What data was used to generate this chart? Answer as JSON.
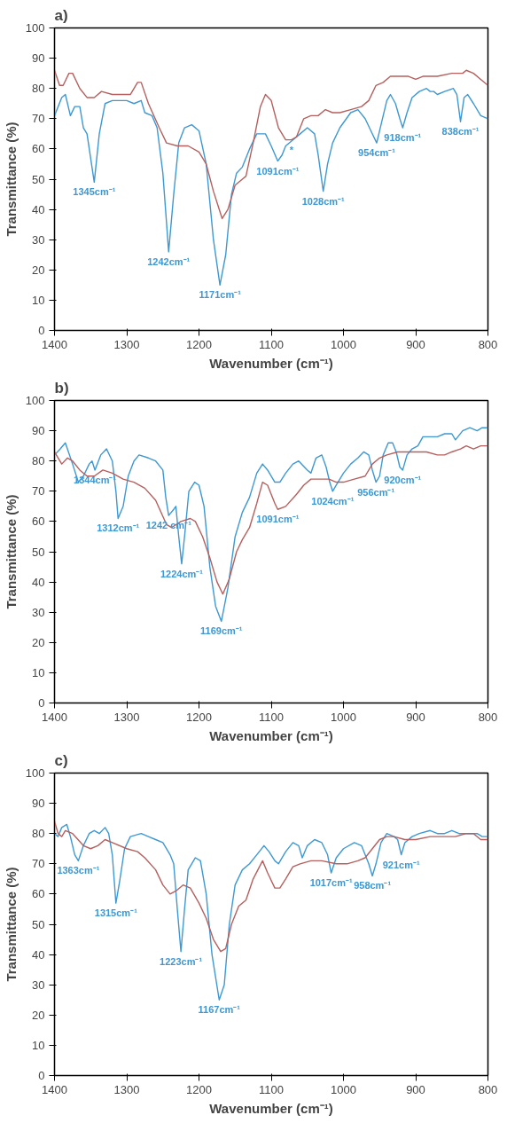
{
  "chart_data": [
    {
      "type": "line",
      "title": "a)",
      "xlabel": "Wavenumber (cm⁻¹)",
      "ylabel": "Transmittance (%)",
      "xlim": [
        1400,
        800
      ],
      "ylim": [
        0,
        100
      ],
      "xticks": [
        1400,
        1300,
        1200,
        1100,
        1000,
        900,
        800
      ],
      "yticks": [
        0,
        10,
        20,
        30,
        40,
        50,
        60,
        70,
        80,
        90,
        100
      ],
      "series": [
        {
          "color": "#3d98d3",
          "x": [
            1400,
            1390,
            1385,
            1378,
            1372,
            1365,
            1360,
            1355,
            1345,
            1338,
            1330,
            1320,
            1300,
            1290,
            1280,
            1275,
            1265,
            1258,
            1250,
            1242,
            1235,
            1228,
            1220,
            1210,
            1200,
            1190,
            1180,
            1171,
            1163,
            1155,
            1148,
            1140,
            1130,
            1120,
            1108,
            1100,
            1091,
            1085,
            1080,
            1070,
            1060,
            1050,
            1040,
            1035,
            1028,
            1022,
            1015,
            1005,
            990,
            980,
            970,
            962,
            954,
            948,
            940,
            935,
            928,
            922,
            918,
            912,
            905,
            895,
            885,
            880,
            875,
            870,
            860,
            848,
            843,
            838,
            833,
            828,
            820,
            810,
            800
          ],
          "values": [
            71,
            77,
            78,
            71,
            74,
            74,
            67,
            65,
            49,
            65,
            75,
            76,
            76,
            75,
            76,
            72,
            71,
            67,
            52,
            26,
            45,
            62,
            67,
            68,
            66,
            55,
            30,
            15,
            25,
            45,
            52,
            54,
            60,
            65,
            65,
            61,
            56,
            58,
            61,
            63,
            65,
            67,
            65,
            58,
            46,
            55,
            62,
            67,
            72,
            73,
            70,
            66,
            62,
            68,
            76,
            78,
            75,
            70,
            67,
            72,
            77,
            79,
            80,
            79,
            79,
            78,
            79,
            80,
            78,
            69,
            77,
            78,
            75,
            71,
            70
          ]
        },
        {
          "color": "#b5605e",
          "x": [
            1400,
            1393,
            1388,
            1380,
            1375,
            1365,
            1355,
            1345,
            1335,
            1320,
            1305,
            1295,
            1285,
            1280,
            1270,
            1255,
            1245,
            1230,
            1215,
            1200,
            1190,
            1180,
            1168,
            1160,
            1150,
            1140,
            1135,
            1125,
            1115,
            1108,
            1100,
            1090,
            1080,
            1072,
            1065,
            1055,
            1045,
            1035,
            1025,
            1015,
            1005,
            990,
            975,
            965,
            955,
            945,
            935,
            920,
            910,
            900,
            890,
            880,
            870,
            850,
            835,
            830,
            820,
            810,
            800
          ],
          "values": [
            86,
            81,
            81,
            85,
            85,
            80,
            77,
            77,
            79,
            78,
            78,
            78,
            82,
            82,
            75,
            67,
            62,
            61,
            61,
            59,
            55,
            46,
            37,
            40,
            48,
            50,
            51,
            62,
            74,
            78,
            76,
            67,
            63,
            63,
            64,
            70,
            71,
            71,
            73,
            72,
            72,
            73,
            74,
            76,
            81,
            82,
            84,
            84,
            84,
            83,
            84,
            84,
            84,
            85,
            85,
            86,
            85,
            83,
            81
          ]
        }
      ],
      "annotations": [
        {
          "text": "1345cm⁻¹",
          "x": 1345,
          "y": 49
        },
        {
          "text": "1242cm⁻¹",
          "x": 1242,
          "y": 26
        },
        {
          "text": "1171cm⁻¹",
          "x": 1171,
          "y": 15
        },
        {
          "text": "1091cm⁻¹",
          "x": 1091,
          "y": 56
        },
        {
          "text": "1028cm⁻¹",
          "x": 1028,
          "y": 46
        },
        {
          "text": "954cm⁻¹",
          "x": 954,
          "y": 62
        },
        {
          "text": "918cm⁻¹",
          "x": 918,
          "y": 67
        },
        {
          "text": "838cm⁻¹",
          "x": 838,
          "y": 69
        },
        {
          "text": "*",
          "x": 1072,
          "y": 63
        }
      ]
    },
    {
      "type": "line",
      "title": "b)",
      "xlabel": "Wavenumber (cm⁻¹)",
      "ylabel": "Transmittance (%)",
      "xlim": [
        1400,
        800
      ],
      "ylim": [
        0,
        100
      ],
      "xticks": [
        1400,
        1300,
        1200,
        1100,
        1000,
        900,
        800
      ],
      "yticks": [
        0,
        10,
        20,
        30,
        40,
        50,
        60,
        70,
        80,
        90,
        100
      ],
      "series": [
        {
          "color": "#3d98d3",
          "x": [
            1400,
            1392,
            1385,
            1375,
            1367,
            1360,
            1352,
            1348,
            1344,
            1336,
            1328,
            1320,
            1315,
            1312,
            1305,
            1298,
            1290,
            1283,
            1270,
            1260,
            1250,
            1246,
            1242,
            1235,
            1232,
            1228,
            1224,
            1220,
            1214,
            1206,
            1200,
            1193,
            1185,
            1177,
            1169,
            1160,
            1150,
            1140,
            1130,
            1120,
            1112,
            1105,
            1095,
            1088,
            1080,
            1070,
            1062,
            1050,
            1045,
            1038,
            1030,
            1024,
            1019,
            1015,
            1010,
            1000,
            990,
            980,
            972,
            965,
            960,
            955,
            950,
            945,
            938,
            932,
            927,
            922,
            918,
            912,
            905,
            897,
            890,
            880,
            870,
            860,
            850,
            845,
            835,
            825,
            815,
            808,
            800
          ],
          "values": [
            82,
            84,
            86,
            79,
            73,
            75,
            79,
            80,
            77,
            82,
            84,
            80,
            70,
            61,
            65,
            75,
            80,
            82,
            81,
            80,
            77,
            68,
            62,
            64,
            65,
            55,
            46,
            55,
            70,
            73,
            72,
            65,
            45,
            32,
            27,
            38,
            55,
            63,
            68,
            76,
            79,
            77,
            73,
            73,
            76,
            79,
            80,
            77,
            76,
            81,
            82,
            78,
            73,
            70,
            72,
            76,
            79,
            81,
            83,
            82,
            77,
            73,
            75,
            82,
            86,
            86,
            83,
            78,
            77,
            82,
            84,
            85,
            88,
            88,
            88,
            89,
            89,
            87,
            90,
            91,
            90,
            91,
            91
          ]
        },
        {
          "color": "#b5605e",
          "x": [
            1400,
            1390,
            1382,
            1375,
            1365,
            1355,
            1345,
            1333,
            1320,
            1305,
            1290,
            1275,
            1260,
            1245,
            1238,
            1225,
            1212,
            1205,
            1195,
            1185,
            1175,
            1167,
            1158,
            1148,
            1140,
            1130,
            1120,
            1112,
            1105,
            1095,
            1091,
            1080,
            1065,
            1055,
            1045,
            1030,
            1020,
            1010,
            1000,
            985,
            970,
            960,
            950,
            940,
            925,
            910,
            900,
            885,
            870,
            860,
            850,
            838,
            830,
            820,
            810,
            800
          ],
          "values": [
            83,
            79,
            81,
            80,
            77,
            75,
            75,
            77,
            76,
            74,
            73,
            71,
            67,
            59,
            58,
            60,
            61,
            60,
            55,
            48,
            40,
            36,
            41,
            50,
            54,
            58,
            66,
            73,
            72,
            66,
            64,
            65,
            69,
            72,
            74,
            74,
            74,
            73,
            73,
            74,
            75,
            79,
            81,
            82,
            83,
            83,
            83,
            83,
            82,
            82,
            83,
            84,
            85,
            84,
            85,
            85
          ]
        }
      ],
      "annotations": [
        {
          "text": "1344cm⁻¹",
          "x": 1344,
          "y": 77
        },
        {
          "text": "1312cm⁻¹",
          "x": 1312,
          "y": 61
        },
        {
          "text": "1242 cm⁻¹",
          "x": 1242,
          "y": 62
        },
        {
          "text": "1224cm⁻¹",
          "x": 1224,
          "y": 46
        },
        {
          "text": "1169cm⁻¹",
          "x": 1169,
          "y": 27
        },
        {
          "text": "1091cm⁻¹",
          "x": 1091,
          "y": 64
        },
        {
          "text": "1024cm⁻¹",
          "x": 1015,
          "y": 70
        },
        {
          "text": "956cm⁻¹",
          "x": 955,
          "y": 73
        },
        {
          "text": "920cm⁻¹",
          "x": 918,
          "y": 77
        }
      ]
    },
    {
      "type": "line",
      "title": "c)",
      "xlabel": "Wavenumber (cm⁻¹)",
      "ylabel": "Transmittance (%)",
      "xlim": [
        1400,
        800
      ],
      "ylim": [
        0,
        100
      ],
      "xticks": [
        1400,
        1300,
        1200,
        1100,
        1000,
        900,
        800
      ],
      "yticks": [
        0,
        10,
        20,
        30,
        40,
        50,
        60,
        70,
        80,
        90,
        100
      ],
      "series": [
        {
          "color": "#3d98d3",
          "x": [
            1400,
            1395,
            1390,
            1383,
            1378,
            1372,
            1367,
            1360,
            1352,
            1345,
            1338,
            1330,
            1325,
            1320,
            1315,
            1310,
            1303,
            1295,
            1280,
            1270,
            1260,
            1250,
            1240,
            1235,
            1230,
            1225,
            1220,
            1215,
            1205,
            1198,
            1190,
            1182,
            1172,
            1165,
            1158,
            1150,
            1140,
            1130,
            1120,
            1110,
            1103,
            1095,
            1090,
            1080,
            1070,
            1062,
            1057,
            1050,
            1040,
            1030,
            1022,
            1017,
            1010,
            1000,
            985,
            975,
            965,
            960,
            955,
            948,
            940,
            930,
            925,
            920,
            915,
            905,
            895,
            880,
            870,
            860,
            850,
            840,
            825,
            815,
            808,
            800
          ],
          "values": [
            80,
            79,
            82,
            83,
            79,
            73,
            71,
            76,
            80,
            81,
            80,
            82,
            80,
            73,
            57,
            64,
            75,
            79,
            80,
            79,
            78,
            77,
            73,
            70,
            55,
            41,
            55,
            68,
            72,
            71,
            60,
            40,
            25,
            30,
            50,
            63,
            68,
            70,
            73,
            76,
            74,
            71,
            70,
            74,
            77,
            76,
            72,
            76,
            78,
            77,
            73,
            67,
            72,
            75,
            77,
            76,
            70,
            66,
            70,
            77,
            80,
            79,
            78,
            73,
            77,
            79,
            80,
            81,
            80,
            80,
            81,
            80,
            80,
            80,
            79,
            79
          ]
        },
        {
          "color": "#b5605e",
          "x": [
            1400,
            1395,
            1390,
            1385,
            1375,
            1360,
            1350,
            1340,
            1330,
            1320,
            1300,
            1285,
            1275,
            1260,
            1250,
            1240,
            1232,
            1222,
            1212,
            1200,
            1190,
            1180,
            1170,
            1163,
            1155,
            1145,
            1135,
            1125,
            1112,
            1105,
            1095,
            1088,
            1080,
            1070,
            1060,
            1045,
            1030,
            1010,
            995,
            980,
            970,
            960,
            950,
            940,
            930,
            915,
            900,
            880,
            860,
            845,
            830,
            820,
            810,
            800
          ],
          "values": [
            84,
            80,
            79,
            81,
            80,
            76,
            75,
            76,
            78,
            77,
            75,
            74,
            72,
            68,
            63,
            60,
            61,
            63,
            62,
            57,
            52,
            45,
            41,
            42,
            50,
            56,
            58,
            65,
            71,
            67,
            62,
            62,
            65,
            69,
            70,
            71,
            71,
            70,
            70,
            71,
            72,
            75,
            78,
            79,
            79,
            78,
            78,
            79,
            79,
            79,
            80,
            80,
            78,
            78
          ]
        }
      ],
      "annotations": [
        {
          "text": "1363cm⁻¹",
          "x": 1367,
          "y": 71
        },
        {
          "text": "1315cm⁻¹",
          "x": 1315,
          "y": 57
        },
        {
          "text": "1223cm⁻¹",
          "x": 1225,
          "y": 41
        },
        {
          "text": "1167cm⁻¹",
          "x": 1172,
          "y": 25
        },
        {
          "text": "1017cm⁻¹",
          "x": 1017,
          "y": 67
        },
        {
          "text": "958cm⁻¹",
          "x": 960,
          "y": 66
        },
        {
          "text": "921cm⁻¹",
          "x": 920,
          "y": 73
        }
      ]
    }
  ]
}
